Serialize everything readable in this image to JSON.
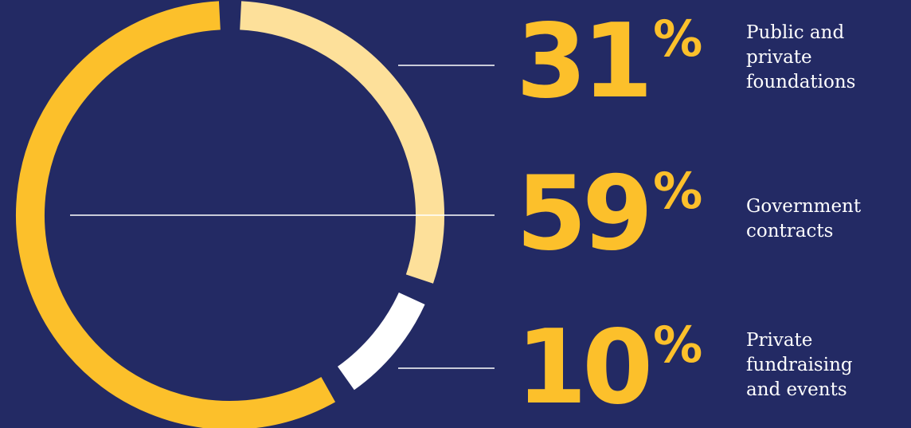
{
  "colors": {
    "background": "#232a64",
    "accent": "#fcc02b",
    "light_accent": "#fde09a",
    "white": "#ffffff"
  },
  "chart_data": {
    "type": "pie",
    "variant": "donut",
    "slices": [
      {
        "value": 31,
        "percent_label": "31",
        "label": "Public and private foundations",
        "label_lines": [
          "Public and",
          "private",
          "foundations"
        ],
        "color": "#fde09a"
      },
      {
        "value": 59,
        "percent_label": "59",
        "label": "Government contracts",
        "label_lines": [
          "Government",
          "contracts"
        ],
        "color": "#fcc02b"
      },
      {
        "value": 10,
        "percent_label": "10",
        "label": "Private fundraising and events",
        "label_lines": [
          "Private",
          "fundraising",
          "and events"
        ],
        "color": "#ffffff"
      }
    ],
    "percent_sign": "%"
  }
}
